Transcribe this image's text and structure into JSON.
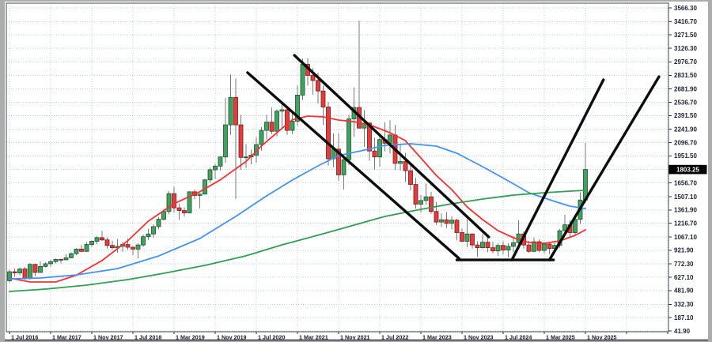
{
  "chart_data": {
    "type": "candlestick",
    "interval": "monthly",
    "first_candle": "Jul 2016",
    "last_candle": "Nov 2025",
    "current_price": {
      "value": 1803.25,
      "label": "1803.25"
    },
    "x_axis": {
      "tick_labels": [
        "1 Jul 2016",
        "1 Mar 2017",
        "1 Nov 2017",
        "1 Jul 2018",
        "1 Mar 2019",
        "1 Nov 2019",
        "1 Jul 2020",
        "1 Mar 2021",
        "1 Nov 2021",
        "1 Jul 2022",
        "1 Mar 2023",
        "1 Nov 2023",
        "1 Jul 2024",
        "1 Mar 2025",
        "1 Nov 2025"
      ],
      "candles_per_tick": 8,
      "extra_future_gridlines": 2
    },
    "y_axis": {
      "tick_values": [
        3566.3,
        3416.7,
        3271.5,
        3126.3,
        2976.7,
        2831.5,
        2681.9,
        2536.7,
        2391.5,
        2241.9,
        2096.7,
        1951.5,
        1656.7,
        1507.1,
        1361.9,
        1216.7,
        1067.1,
        921.9,
        772.3,
        627.1,
        481.9,
        332.3,
        187.1,
        41.9
      ],
      "hidden_gridline_value": 1804.1,
      "max": 3566.3,
      "min": 41.9
    },
    "candles_ohlc": [
      [
        590,
        712,
        572,
        688
      ],
      [
        688,
        722,
        630,
        675
      ],
      [
        675,
        730,
        648,
        718
      ],
      [
        718,
        740,
        600,
        618
      ],
      [
        618,
        782,
        602,
        768
      ],
      [
        768,
        775,
        640,
        680
      ],
      [
        680,
        800,
        676,
        745
      ],
      [
        745,
        790,
        735,
        775
      ],
      [
        775,
        815,
        742,
        798
      ],
      [
        798,
        830,
        780,
        823
      ],
      [
        823,
        830,
        780,
        818
      ],
      [
        818,
        880,
        812,
        840
      ],
      [
        840,
        900,
        835,
        885
      ],
      [
        885,
        945,
        870,
        935
      ],
      [
        935,
        980,
        900,
        910
      ],
      [
        910,
        1010,
        905,
        985
      ],
      [
        985,
        1028,
        960,
        1020
      ],
      [
        1020,
        1075,
        990,
        1060
      ],
      [
        1060,
        1133,
        1022,
        1035
      ],
      [
        1035,
        1062,
        940,
        975
      ],
      [
        975,
        1025,
        930,
        950
      ],
      [
        950,
        1045,
        895,
        965
      ],
      [
        965,
        1010,
        905,
        985
      ],
      [
        985,
        1050,
        930,
        955
      ],
      [
        955,
        965,
        870,
        935
      ],
      [
        935,
        1000,
        832,
        980
      ],
      [
        980,
        1095,
        960,
        1070
      ],
      [
        1070,
        1155,
        1035,
        1100
      ],
      [
        1100,
        1205,
        1060,
        1180
      ],
      [
        1180,
        1285,
        1150,
        1260
      ],
      [
        1260,
        1370,
        1245,
        1345
      ],
      [
        1345,
        1565,
        1315,
        1540
      ],
      [
        1540,
        1615,
        1330,
        1385
      ],
      [
        1385,
        1430,
        1255,
        1355
      ],
      [
        1355,
        1390,
        1290,
        1330
      ],
      [
        1330,
        1565,
        1325,
        1560
      ],
      [
        1560,
        1585,
        1480,
        1520
      ],
      [
        1520,
        1545,
        1380,
        1535
      ],
      [
        1535,
        1700,
        1530,
        1690
      ],
      [
        1690,
        1825,
        1660,
        1800
      ],
      [
        1800,
        1865,
        1700,
        1840
      ],
      [
        1840,
        1945,
        1790,
        1940
      ],
      [
        1940,
        2585,
        1875,
        2290
      ],
      [
        2290,
        2841,
        2180,
        2590
      ],
      [
        2590,
        2795,
        1482,
        2290
      ],
      [
        2290,
        2400,
        1800,
        1935
      ],
      [
        1935,
        2080,
        1820,
        1940
      ],
      [
        1940,
        2020,
        1860,
        1960
      ],
      [
        1960,
        2155,
        1880,
        2075
      ],
      [
        2075,
        2265,
        2010,
        2230
      ],
      [
        2230,
        2400,
        2130,
        2320
      ],
      [
        2320,
        2480,
        2190,
        2220
      ],
      [
        2220,
        2460,
        2165,
        2440
      ],
      [
        2440,
        2520,
        2255,
        2455
      ],
      [
        2455,
        2500,
        2180,
        2230
      ],
      [
        2230,
        2440,
        2190,
        2330
      ],
      [
        2330,
        2720,
        2280,
        2615
      ],
      [
        2615,
        3015,
        2560,
        2950
      ],
      [
        2950,
        3019,
        2720,
        2830
      ],
      [
        2830,
        2910,
        2620,
        2775
      ],
      [
        2775,
        2860,
        2525,
        2660
      ],
      [
        2660,
        2720,
        2290,
        2485
      ],
      [
        2485,
        2540,
        1845,
        1920
      ],
      [
        1920,
        2195,
        1830,
        2025
      ],
      [
        2025,
        2200,
        1680,
        1745
      ],
      [
        1745,
        1960,
        1585,
        1910
      ],
      [
        1910,
        2400,
        1850,
        2355
      ],
      [
        2355,
        2700,
        2160,
        2480
      ],
      [
        2480,
        3425,
        2250,
        2255
      ],
      [
        2255,
        2450,
        2050,
        2310
      ],
      [
        2310,
        2320,
        1900,
        2005
      ],
      [
        2005,
        2150,
        1800,
        1940
      ],
      [
        1940,
        2180,
        1835,
        2130
      ],
      [
        2130,
        2320,
        2000,
        2090
      ],
      [
        2090,
        2340,
        1975,
        2180
      ],
      [
        2180,
        2290,
        1800,
        1870
      ],
      [
        1870,
        2085,
        1790,
        1890
      ],
      [
        1890,
        1985,
        1670,
        1790
      ],
      [
        1790,
        1855,
        1575,
        1640
      ],
      [
        1640,
        1715,
        1375,
        1425
      ],
      [
        1425,
        1525,
        1335,
        1465
      ],
      [
        1465,
        1650,
        1420,
        1505
      ],
      [
        1505,
        1560,
        1320,
        1345
      ],
      [
        1345,
        1450,
        1200,
        1230
      ],
      [
        1230,
        1325,
        1175,
        1255
      ],
      [
        1255,
        1340,
        1165,
        1215
      ],
      [
        1215,
        1290,
        1150,
        1250
      ],
      [
        1250,
        1265,
        1030,
        1115
      ],
      [
        1115,
        1160,
        1015,
        1020
      ],
      [
        1020,
        1260,
        955,
        1100
      ],
      [
        1100,
        1105,
        940,
        980
      ],
      [
        980,
        1020,
        850,
        950
      ],
      [
        950,
        1100,
        940,
        1010
      ],
      [
        1010,
        1075,
        900,
        950
      ],
      [
        950,
        1015,
        890,
        915
      ],
      [
        915,
        1000,
        860,
        975
      ],
      [
        975,
        1020,
        880,
        925
      ],
      [
        925,
        1000,
        845,
        965
      ],
      [
        965,
        1075,
        900,
        1005
      ],
      [
        1005,
        1250,
        985,
        1100
      ],
      [
        1100,
        1125,
        940,
        980
      ],
      [
        980,
        1025,
        895,
        910
      ],
      [
        910,
        1060,
        900,
        1015
      ],
      [
        1015,
        1040,
        900,
        920
      ],
      [
        920,
        1010,
        890,
        990
      ],
      [
        990,
        1000,
        880,
        940
      ],
      [
        940,
        1005,
        920,
        975
      ],
      [
        975,
        1155,
        950,
        1135
      ],
      [
        1135,
        1310,
        1100,
        1200
      ],
      [
        1200,
        1250,
        1060,
        1115
      ],
      [
        1115,
        1285,
        1080,
        1260
      ],
      [
        1260,
        1555,
        1210,
        1470
      ],
      [
        1470,
        2095,
        1440,
        1803.25
      ]
    ],
    "moving_averages": [
      {
        "name": "ma-fast-red",
        "color": "#f93030",
        "points": [
          [
            0,
            619
          ],
          [
            4,
            576
          ],
          [
            9,
            576
          ],
          [
            13,
            650
          ],
          [
            18,
            810
          ],
          [
            23,
            1025
          ],
          [
            27,
            1240
          ],
          [
            32,
            1430
          ],
          [
            37,
            1560
          ],
          [
            41,
            1690
          ],
          [
            46,
            1890
          ],
          [
            49,
            2060
          ],
          [
            52,
            2205
          ],
          [
            55,
            2345
          ],
          [
            58,
            2386
          ],
          [
            61,
            2377
          ],
          [
            64,
            2343
          ],
          [
            67,
            2325
          ],
          [
            70,
            2291
          ],
          [
            74,
            2205
          ],
          [
            77,
            2118
          ],
          [
            80,
            1929
          ],
          [
            83,
            1739
          ],
          [
            86,
            1584
          ],
          [
            89,
            1395
          ],
          [
            92,
            1257
          ],
          [
            95,
            1136
          ],
          [
            98,
            1059
          ],
          [
            101,
            1007
          ],
          [
            104,
            998
          ],
          [
            107,
            1024
          ],
          [
            110,
            1085
          ],
          [
            112,
            1145
          ]
        ]
      },
      {
        "name": "ma-mid-blue",
        "color": "#4292f0",
        "points": [
          [
            0,
            610
          ],
          [
            6,
            619
          ],
          [
            13,
            653
          ],
          [
            21,
            722
          ],
          [
            29,
            860
          ],
          [
            37,
            1050
          ],
          [
            44,
            1291
          ],
          [
            50,
            1515
          ],
          [
            55,
            1688
          ],
          [
            60,
            1843
          ],
          [
            64,
            1955
          ],
          [
            69,
            2015
          ],
          [
            73,
            2067
          ],
          [
            78,
            2084
          ],
          [
            83,
            2058
          ],
          [
            87,
            1981
          ],
          [
            92,
            1834
          ],
          [
            97,
            1679
          ],
          [
            101,
            1550
          ],
          [
            106,
            1455
          ],
          [
            109,
            1403
          ],
          [
            112,
            1377
          ]
        ]
      },
      {
        "name": "ma-slow-green",
        "color": "#2f9e4f",
        "points": [
          [
            0,
            473
          ],
          [
            7,
            499
          ],
          [
            15,
            542
          ],
          [
            23,
            602
          ],
          [
            30,
            671
          ],
          [
            38,
            757
          ],
          [
            46,
            861
          ],
          [
            53,
            981
          ],
          [
            61,
            1102
          ],
          [
            67,
            1197
          ],
          [
            73,
            1291
          ],
          [
            80,
            1369
          ],
          [
            86,
            1429
          ],
          [
            92,
            1481
          ],
          [
            98,
            1524
          ],
          [
            104,
            1550
          ],
          [
            109,
            1567
          ],
          [
            112,
            1576
          ]
        ]
      }
    ],
    "trendlines": [
      {
        "name": "descending-channel-lower",
        "from": [
          46.3,
          2860
        ],
        "to": [
          87.4,
          834
        ]
      },
      {
        "name": "descending-channel-upper",
        "from": [
          55.4,
          3049
        ],
        "to": [
          93.2,
          1067
        ]
      },
      {
        "name": "horizontal-support",
        "from": [
          87.0,
          817
        ],
        "to": [
          105.8,
          817
        ]
      },
      {
        "name": "ascending-line-inner",
        "from": [
          97.7,
          817
        ],
        "to": [
          115.5,
          2782
        ]
      },
      {
        "name": "ascending-line-outer",
        "from": [
          105.0,
          817
        ],
        "to": [
          126.3,
          2816
        ]
      }
    ],
    "colors": {
      "candle_up_fill": "#3fa35f",
      "candle_up_stroke": "#1d4f2c",
      "candle_down_fill": "#e13d3d",
      "candle_down_stroke": "#7c1616",
      "wick": "#7a7a7a",
      "grid": "#bccde8",
      "trendline": "#0d0d0d",
      "axis_text": "#1a1f33",
      "price_tag_bg": "#000000",
      "price_tag_text": "#ffffff",
      "frame": "#acacac",
      "panel": "#ffffff",
      "plot_border": "#4a4a4a"
    }
  }
}
